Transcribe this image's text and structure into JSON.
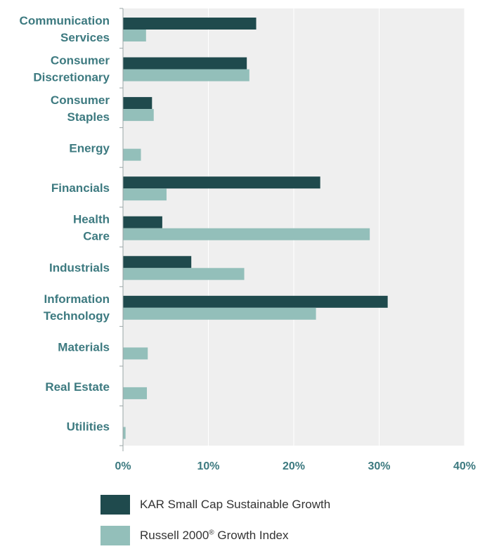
{
  "chart_data": {
    "type": "bar",
    "orientation": "horizontal",
    "categories": [
      [
        "Communication",
        "Services"
      ],
      [
        "Consumer",
        "Discretionary"
      ],
      [
        "Consumer",
        "Staples"
      ],
      [
        "Energy"
      ],
      [
        "Financials"
      ],
      [
        "Health",
        "Care"
      ],
      [
        "Industrials"
      ],
      [
        "Information",
        "Technology"
      ],
      [
        "Materials"
      ],
      [
        "Real Estate"
      ],
      [
        "Utilities"
      ]
    ],
    "series": [
      {
        "name": "KAR Small Cap Sustainable Growth",
        "color": "#1f4a4d",
        "values": [
          15.6,
          14.5,
          3.4,
          0,
          23.1,
          4.6,
          8.0,
          31.0,
          0,
          0,
          0
        ]
      },
      {
        "name": "Russell 2000® Growth Index",
        "color": "#93bfba",
        "values": [
          2.7,
          14.8,
          3.6,
          2.1,
          5.1,
          28.9,
          14.2,
          22.6,
          2.9,
          2.8,
          0.3
        ]
      }
    ],
    "xlim": [
      0,
      40
    ],
    "xticks": [
      "0%",
      "10%",
      "20%",
      "30%",
      "40%"
    ],
    "grid": true,
    "legend_position": "bottom",
    "plot_background": "#efefef",
    "grid_color": "#ffffff"
  },
  "legend": {
    "item1_label": "KAR Small Cap Sustainable Growth",
    "item2_label_main": "Russell 2000",
    "item2_label_sup": "®",
    "item2_label_tail": " Growth Index"
  }
}
